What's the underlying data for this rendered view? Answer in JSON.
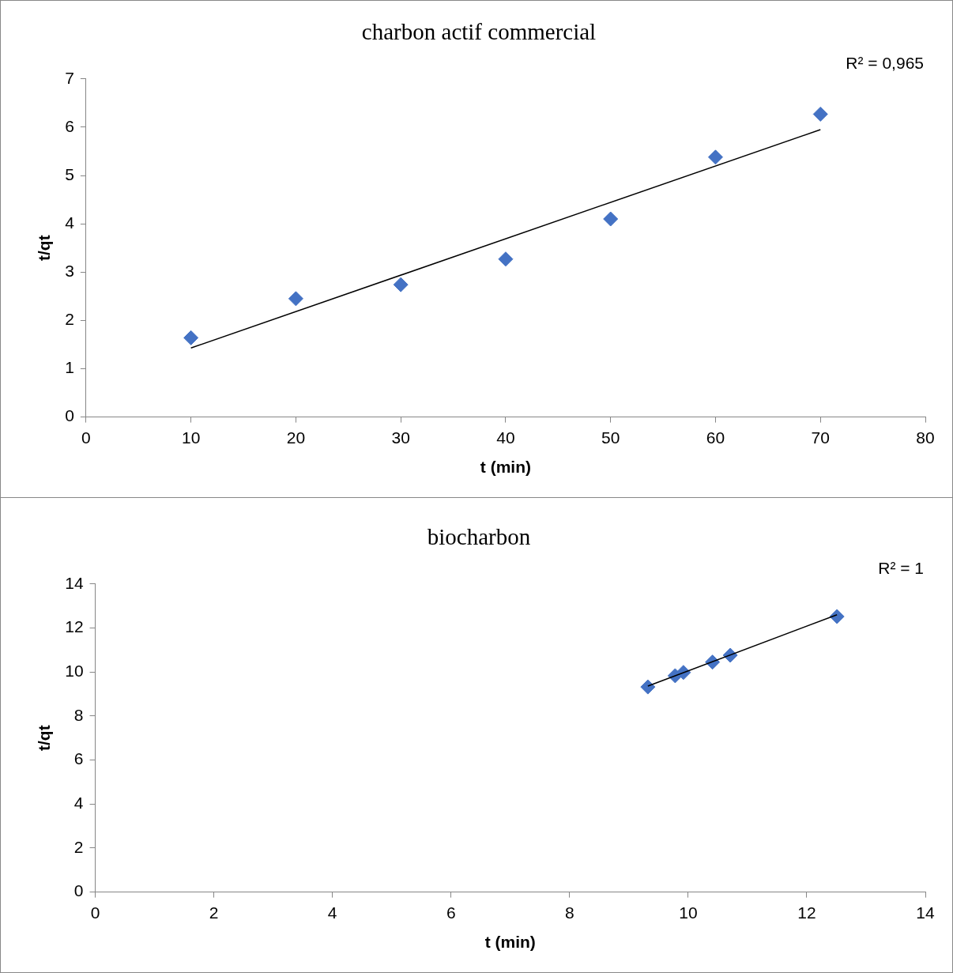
{
  "chart_data": [
    {
      "type": "scatter",
      "title": "charbon actif commercial",
      "xlabel": "t (min)",
      "ylabel": "t/qt",
      "xlim": [
        0,
        80
      ],
      "xticks": [
        0,
        10,
        20,
        30,
        40,
        50,
        60,
        70,
        80
      ],
      "ylim": [
        0,
        7
      ],
      "yticks": [
        0,
        1,
        2,
        3,
        4,
        5,
        6,
        7
      ],
      "grid": false,
      "legend": false,
      "annotations": [
        "R² = 0,965"
      ],
      "series": [
        {
          "type": "scatter",
          "marker": "diamond",
          "color": "#4472c4",
          "x": [
            10,
            20,
            30,
            40,
            50,
            60,
            70
          ],
          "values": [
            1.64,
            2.45,
            2.74,
            3.27,
            4.1,
            5.38,
            6.27
          ]
        },
        {
          "type": "line",
          "marker": "none",
          "color": "#000000",
          "x": [
            10,
            70
          ],
          "values": [
            1.43,
            5.95
          ]
        }
      ]
    },
    {
      "type": "scatter",
      "title": "biocharbon",
      "xlabel": "t (min)",
      "ylabel": "t/qt",
      "xlim": [
        0,
        14
      ],
      "xticks": [
        0,
        2,
        4,
        6,
        8,
        10,
        12,
        14
      ],
      "ylim": [
        0,
        14
      ],
      "yticks": [
        0,
        2,
        4,
        6,
        8,
        10,
        12,
        14
      ],
      "grid": false,
      "legend": false,
      "annotations": [
        "R² = 1"
      ],
      "series": [
        {
          "type": "scatter",
          "marker": "diamond",
          "color": "#4472c4",
          "x": [
            9.32,
            9.78,
            9.92,
            10.41,
            10.71,
            12.51
          ],
          "values": [
            9.32,
            9.83,
            9.98,
            10.45,
            10.76,
            12.52
          ]
        },
        {
          "type": "line",
          "marker": "none",
          "color": "#000000",
          "x": [
            9.32,
            12.51
          ],
          "values": [
            9.36,
            12.6
          ]
        }
      ]
    }
  ]
}
